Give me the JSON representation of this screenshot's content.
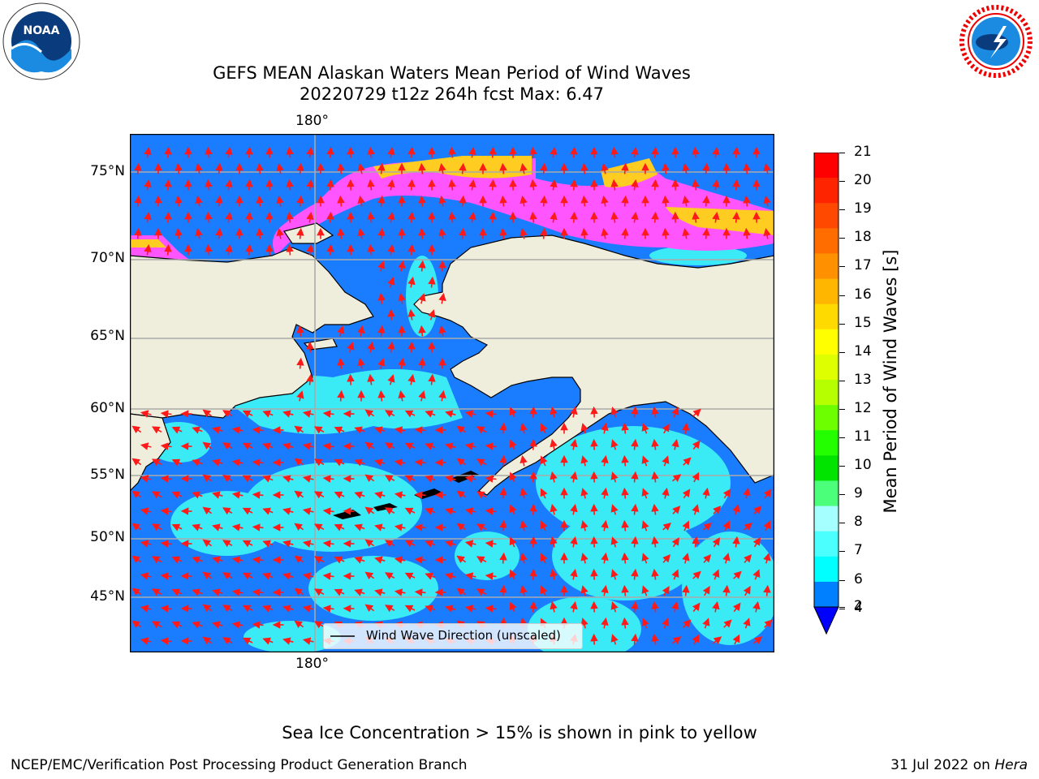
{
  "title_line1": "GEFS MEAN Alaskan Waters Mean Period of Wind Waves",
  "title_line2": "20220729 t12z 264h fcst   Max: 6.47",
  "top_lon_label": "180°",
  "bottom_lon_label": "180°",
  "lat_labels": [
    "75°N",
    "70°N",
    "65°N",
    "60°N",
    "55°N",
    "50°N",
    "45°N"
  ],
  "legend_label": "Wind Wave Direction (unscaled)",
  "colorbar": {
    "label": "Mean Period of Wind Waves [s]",
    "ticks": [
      "21",
      "20",
      "19",
      "18",
      "17",
      "16",
      "15",
      "14",
      "13",
      "12",
      "11",
      "10",
      "9",
      "8",
      "7",
      "6",
      "4",
      "2"
    ],
    "colors": [
      "#ff0000",
      "#ff2400",
      "#ff4800",
      "#ff6d00",
      "#ff9100",
      "#ffb600",
      "#ffda00",
      "#ffff00",
      "#ddff00",
      "#b6ff00",
      "#6dff00",
      "#24ff00",
      "#00e400",
      "#4cff7a",
      "#a6ffff",
      "#4cffff",
      "#00ffff",
      "#0080ff"
    ],
    "under_color": "#0000ff"
  },
  "caption": "Sea Ice Concentration > 15% is shown in pink to yellow",
  "footer_left": "NCEP/EMC/Verification Post Processing Product Generation Branch",
  "footer_right_date": "31 Jul 2022 on ",
  "footer_right_machine": "Hera",
  "logos": {
    "noaa": "NOAA",
    "noaa_ring": "NATIONAL OCEANIC AND ATMOSPHERIC ADMINISTRATION · U.S. DEPARTMENT OF COMMERCE",
    "nws_ring": "NATIONAL WEATHER SERVICE"
  },
  "colors": {
    "ocean": "#1a7cff",
    "ocean_light": "#3cf0f5",
    "land": "#efeedd",
    "arrow": "#ff1a1a",
    "ice_pink": "#ff55ff",
    "ice_yellow": "#ffcc22"
  }
}
